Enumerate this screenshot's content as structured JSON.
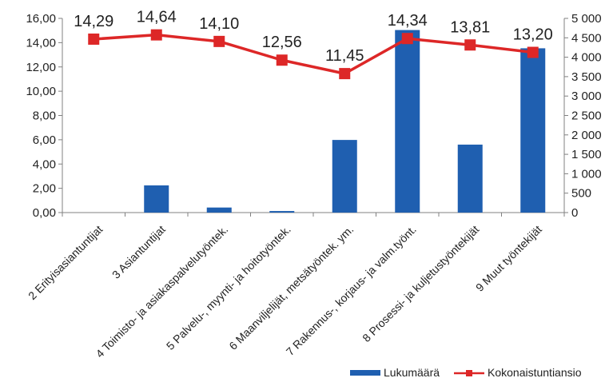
{
  "chart_data": {
    "type": "bar+line",
    "categories": [
      "2 Erityisasiantuntijat",
      "3 Asiantuntijat",
      "4 Toimisto- ja asiakaspalvelutyöntek.",
      "5 Palvelu-, myynti- ja hoitotyöntek.",
      "6 Maanviljelijät, metsätyöntek. ym.",
      "7 Rakennus-, korjaus- ja valm.työnt.",
      "8 Prosessi- ja kuljetustyöntekijät",
      "9 Muut työntekijät"
    ],
    "series": [
      {
        "name": "Lukumäärä",
        "type": "bar",
        "axis": "right",
        "color": "#1f5fb0",
        "values": [
          0,
          700,
          130,
          40,
          1870,
          4700,
          1750,
          4230
        ]
      },
      {
        "name": "Kokonaistuntiansio",
        "type": "line",
        "axis": "left",
        "color": "#dd2727",
        "values": [
          14.29,
          14.64,
          14.1,
          12.56,
          11.45,
          14.34,
          13.81,
          13.2
        ],
        "labels": [
          "14,29",
          "14,64",
          "14,10",
          "12,56",
          "11,45",
          "14,34",
          "13,81",
          "13,20"
        ]
      }
    ],
    "y_left": {
      "range": [
        0,
        16
      ],
      "ticks": [
        "0,00",
        "2,00",
        "4,00",
        "6,00",
        "8,00",
        "10,00",
        "12,00",
        "14,00",
        "16,00"
      ]
    },
    "y_right": {
      "range": [
        0,
        5000
      ],
      "ticks": [
        "0",
        "500",
        "1 000",
        "1 500",
        "2 000",
        "2 500",
        "3 000",
        "3 500",
        "4 000",
        "4 500",
        "5 000"
      ]
    },
    "grid": false,
    "legend": "bottom-right"
  }
}
